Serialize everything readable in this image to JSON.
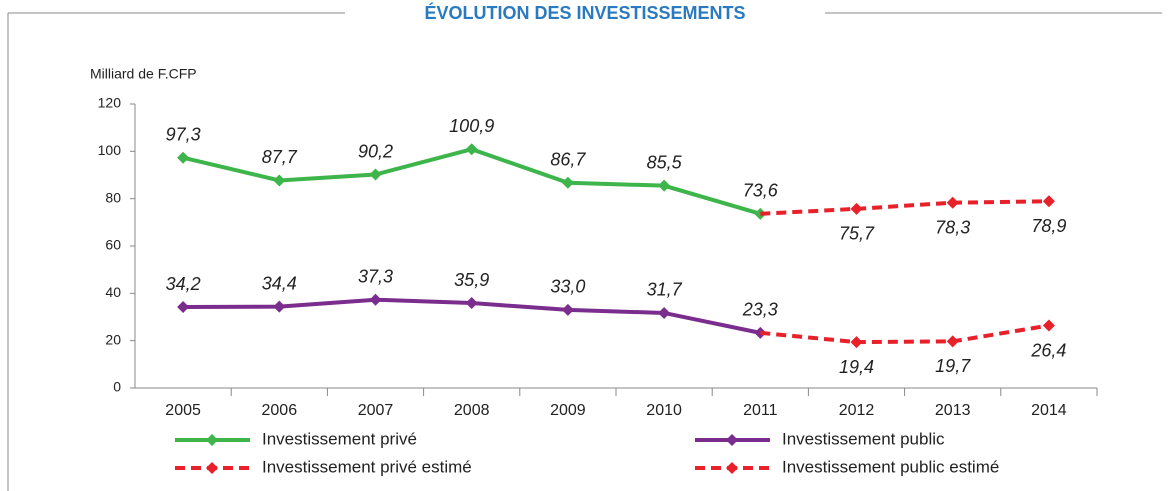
{
  "chart_data": {
    "type": "line",
    "title": "ÉVOLUTION DES INVESTISSEMENTS",
    "y_label": "Milliard de F.CFP",
    "categories": [
      "2005",
      "2006",
      "2007",
      "2008",
      "2009",
      "2010",
      "2011",
      "2012",
      "2013",
      "2014"
    ],
    "ylim": [
      0,
      120
    ],
    "yticks": [
      0,
      20,
      40,
      60,
      80,
      100,
      120
    ],
    "series": [
      {
        "name": "Investissement privé",
        "color": "#3db54a",
        "dashed": false,
        "values": [
          97.3,
          87.7,
          90.2,
          100.9,
          86.7,
          85.5,
          73.6,
          null,
          null,
          null
        ],
        "value_labels": [
          "97,3",
          "87,7",
          "90,2",
          "100,9",
          "86,7",
          "85,5",
          "73,6",
          null,
          null,
          null
        ]
      },
      {
        "name": "Investissement public",
        "color": "#7b2d8e",
        "dashed": false,
        "values": [
          34.2,
          34.4,
          37.3,
          35.9,
          33.0,
          31.7,
          23.3,
          null,
          null,
          null
        ],
        "value_labels": [
          "34,2",
          "34,4",
          "37,3",
          "35,9",
          "33,0",
          "31,7",
          "23,3",
          null,
          null,
          null
        ]
      },
      {
        "name": "Investissement privé estimé",
        "color": "#e8202a",
        "dashed": true,
        "values": [
          null,
          null,
          null,
          null,
          null,
          null,
          73.6,
          75.7,
          78.3,
          78.9
        ],
        "value_labels": [
          null,
          null,
          null,
          null,
          null,
          null,
          null,
          "75,7",
          "78,3",
          "78,9"
        ]
      },
      {
        "name": "Investissement public estimé",
        "color": "#e8202a",
        "dashed": true,
        "values": [
          null,
          null,
          null,
          null,
          null,
          null,
          23.3,
          19.4,
          19.7,
          26.4
        ],
        "value_labels": [
          null,
          null,
          null,
          null,
          null,
          null,
          null,
          "19,4",
          "19,7",
          "26,4"
        ]
      }
    ]
  }
}
